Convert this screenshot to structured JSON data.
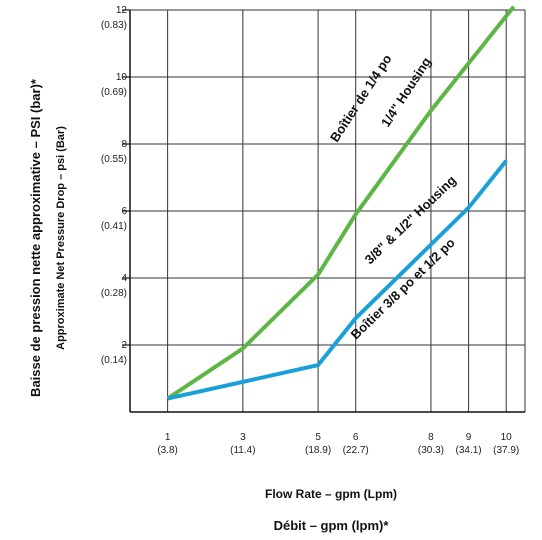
{
  "chart_data": {
    "type": "line",
    "x_ticks": [
      {
        "x": 1,
        "label": "1",
        "sublabel": "(3.8)"
      },
      {
        "x": 3,
        "label": "3",
        "sublabel": "(11.4)"
      },
      {
        "x": 5,
        "label": "5",
        "sublabel": "(18.9)"
      },
      {
        "x": 6,
        "label": "6",
        "sublabel": "(22.7)"
      },
      {
        "x": 8,
        "label": "8",
        "sublabel": "(30.3)"
      },
      {
        "x": 9,
        "label": "9",
        "sublabel": "(34.1)"
      },
      {
        "x": 10,
        "label": "10",
        "sublabel": "(37.9)"
      }
    ],
    "y_ticks": [
      {
        "y": 2,
        "label": "2",
        "sublabel": "(0.14)"
      },
      {
        "y": 4,
        "label": "4",
        "sublabel": "(0.28)"
      },
      {
        "y": 6,
        "label": "6",
        "sublabel": "(0.41)"
      },
      {
        "y": 8,
        "label": "8",
        "sublabel": "(0.55)"
      },
      {
        "y": 10,
        "label": "10",
        "sublabel": "(0.69)"
      },
      {
        "y": 12,
        "label": "12",
        "sublabel": "(0.83)"
      }
    ],
    "xlim": [
      0,
      10.5
    ],
    "ylim": [
      0,
      12
    ],
    "xlabel": "Flow Rate – gpm (Lpm)",
    "xlabel_fr": "Débit – gpm (lpm)*",
    "ylabel": "Approximate Net Pressure Drop – psi (Bar)",
    "ylabel_fr": "Baisse de pression nette approximative – PSI (bar)*",
    "grid": true,
    "series": [
      {
        "name": "1/4\" Housing",
        "name_fr": "Boîtier de 1/4 po",
        "color": "#5cb646",
        "x": [
          1,
          3,
          5,
          6,
          8,
          10.2
        ],
        "y": [
          0.4,
          1.9,
          4.1,
          5.9,
          9.0,
          12.1
        ]
      },
      {
        "name": "3/8\" & 1/2\" Housing",
        "name_fr": "Boîtier 3/8 po et 1/2 po",
        "color": "#1aa0d8",
        "x": [
          1,
          5,
          6,
          8,
          9,
          10
        ],
        "y": [
          0.4,
          1.4,
          2.8,
          5.0,
          6.1,
          7.5
        ]
      }
    ]
  }
}
